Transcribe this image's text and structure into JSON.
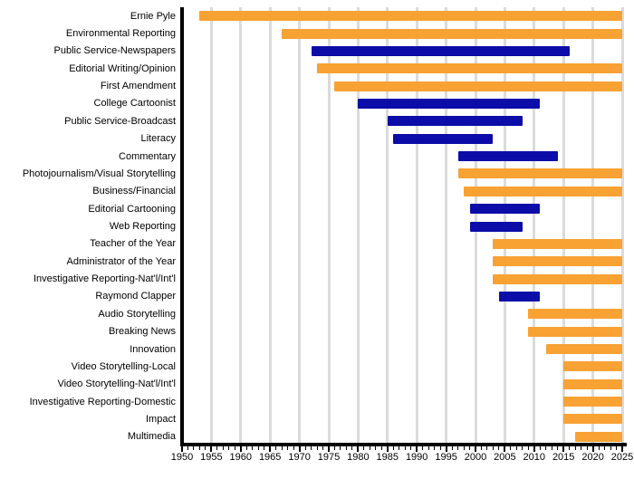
{
  "chart_data": {
    "type": "bar",
    "subtype": "horizontal-timeline-gantt",
    "title": "",
    "xlabel": "",
    "ylabel": "",
    "grid": true,
    "legend": "none",
    "x_axis": {
      "min": 1950,
      "max": 2025,
      "major_tick_step": 5,
      "minor_tick_step": 1,
      "tick_labels": [
        "1950",
        "1955",
        "1960",
        "1965",
        "1970",
        "1975",
        "1980",
        "1985",
        "1990",
        "1995",
        "2000",
        "2005",
        "2010",
        "2015",
        "2020",
        "2025"
      ]
    },
    "categories": [
      "Ernie Pyle",
      "Environmental Reporting",
      "Public Service-Newspapers",
      "Editorial Writing/Opinion",
      "First Amendment",
      "College Cartoonist",
      "Public Service-Broadcast",
      "Literacy",
      "Commentary",
      "Photojournalism/Visual Storytelling",
      "Business/Financial",
      "Editorial Cartooning",
      "Web Reporting",
      "Teacher of the Year",
      "Administrator of the Year",
      "Investigative Reporting-Nat'l/Int'l",
      "Raymond Clapper",
      "Audio Storytelling",
      "Breaking News",
      "Innovation",
      "Video Storytelling-Local",
      "Video Storytelling-Nat'l/Int'l",
      "Investigative Reporting-Domestic",
      "Impact",
      "Multimedia"
    ],
    "bars": [
      {
        "label": "Ernie Pyle",
        "start": 1953,
        "end": 2025,
        "color": "orange"
      },
      {
        "label": "Environmental Reporting",
        "start": 1967,
        "end": 2025,
        "color": "orange"
      },
      {
        "label": "Public Service-Newspapers",
        "start": 1972,
        "end": 2016,
        "color": "navy"
      },
      {
        "label": "Editorial Writing/Opinion",
        "start": 1973,
        "end": 2025,
        "color": "orange"
      },
      {
        "label": "First Amendment",
        "start": 1976,
        "end": 2025,
        "color": "orange"
      },
      {
        "label": "College Cartoonist",
        "start": 1980,
        "end": 2011,
        "color": "navy"
      },
      {
        "label": "Public Service-Broadcast",
        "start": 1985,
        "end": 2008,
        "color": "navy"
      },
      {
        "label": "Literacy",
        "start": 1986,
        "end": 2003,
        "color": "navy"
      },
      {
        "label": "Commentary",
        "start": 1997,
        "end": 2014,
        "color": "navy"
      },
      {
        "label": "Photojournalism/Visual Storytelling",
        "start": 1997,
        "end": 2025,
        "color": "orange"
      },
      {
        "label": "Business/Financial",
        "start": 1998,
        "end": 2025,
        "color": "orange"
      },
      {
        "label": "Editorial Cartooning",
        "start": 1999,
        "end": 2011,
        "color": "navy"
      },
      {
        "label": "Web Reporting",
        "start": 1999,
        "end": 2008,
        "color": "navy"
      },
      {
        "label": "Teacher of the Year",
        "start": 2003,
        "end": 2025,
        "color": "orange"
      },
      {
        "label": "Administrator of the Year",
        "start": 2003,
        "end": 2025,
        "color": "orange"
      },
      {
        "label": "Investigative Reporting-Nat'l/Int'l",
        "start": 2003,
        "end": 2025,
        "color": "orange"
      },
      {
        "label": "Raymond Clapper",
        "start": 2004,
        "end": 2011,
        "color": "navy"
      },
      {
        "label": "Audio Storytelling",
        "start": 2009,
        "end": 2025,
        "color": "orange"
      },
      {
        "label": "Breaking News",
        "start": 2009,
        "end": 2025,
        "color": "orange"
      },
      {
        "label": "Innovation",
        "start": 2012,
        "end": 2025,
        "color": "orange"
      },
      {
        "label": "Video Storytelling-Local",
        "start": 2015,
        "end": 2025,
        "color": "orange"
      },
      {
        "label": "Video Storytelling-Nat'l/Int'l",
        "start": 2015,
        "end": 2025,
        "color": "orange"
      },
      {
        "label": "Investigative Reporting-Domestic",
        "start": 2015,
        "end": 2025,
        "color": "orange"
      },
      {
        "label": "Impact",
        "start": 2015,
        "end": 2025,
        "color": "orange"
      },
      {
        "label": "Multimedia",
        "start": 2017,
        "end": 2025,
        "color": "orange"
      }
    ]
  },
  "colors": {
    "orange": "#F7A233",
    "navy": "#0C0CA8",
    "gridline": "#DBDBDB",
    "axis": "#000000",
    "text": "#000000",
    "background": "#FFFFFF"
  }
}
